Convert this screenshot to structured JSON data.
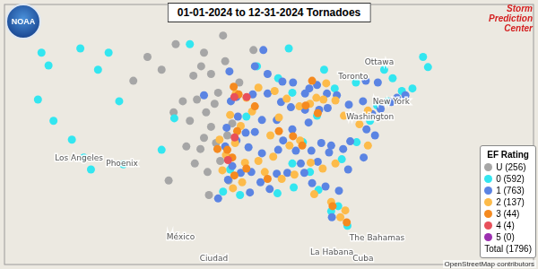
{
  "chart_data": {
    "type": "scatter",
    "title": "01-01-2024 to 12-31-2024 Tornadoes",
    "noaa_logo_text": "NOAA",
    "spc_logo_text": "Storm Prediction Center",
    "attribution": "OpenStreetMap contributors",
    "legend_title": "EF Rating",
    "legend_total": "Total (1796)",
    "legend": "bottom right",
    "grid": false,
    "tick_labels": false,
    "marker": "circle",
    "xlim": [
      -128.8,
      -53.8
    ],
    "ylim": [
      21.6,
      52.2
    ],
    "map_labels": [
      {
        "text": "Ottawa",
        "x": -75.7,
        "y": 45.4
      },
      {
        "text": "Toronto",
        "x": -79.4,
        "y": 43.7
      },
      {
        "text": "New York",
        "x": -74.0,
        "y": 40.7
      },
      {
        "text": "Washington",
        "x": -77.0,
        "y": 38.9
      },
      {
        "text": "Los Angeles",
        "x": -118.2,
        "y": 34.05
      },
      {
        "text": "Phoenix",
        "x": -112.1,
        "y": 33.45
      },
      {
        "text": "México",
        "x": -103.8,
        "y": 24.8
      },
      {
        "text": "Ciudad",
        "x": -99.1,
        "y": 22.3
      },
      {
        "text": "La Habana",
        "x": -82.4,
        "y": 23.1
      },
      {
        "text": "Cuba",
        "x": -78.0,
        "y": 22.3
      },
      {
        "text": "The Bahamas",
        "x": -76.0,
        "y": 24.7
      }
    ],
    "series": [
      {
        "name": "U (256)",
        "color": "#a6a6a6",
        "values": [
          [
            -101,
            35.2
          ],
          [
            -100.5,
            36.5
          ],
          [
            -99.5,
            37.8
          ],
          [
            -100.2,
            39.5
          ],
          [
            -101.5,
            41
          ],
          [
            -99,
            40.5
          ],
          [
            -102.5,
            38.5
          ],
          [
            -103.5,
            40.8
          ],
          [
            -98.2,
            33.8
          ],
          [
            -100,
            32.5
          ],
          [
            -101.8,
            33.5
          ],
          [
            -103,
            35.5
          ],
          [
            -104.8,
            39.5
          ],
          [
            -97.5,
            45.5
          ],
          [
            -99.5,
            44
          ],
          [
            -100.5,
            46.5
          ],
          [
            -106.5,
            44.5
          ],
          [
            -108.5,
            46
          ],
          [
            -104.5,
            47.5
          ],
          [
            -97.8,
            48.5
          ],
          [
            -96.5,
            38.2
          ],
          [
            -98.5,
            41.8
          ],
          [
            -102,
            43.8
          ],
          [
            -95.5,
            43
          ],
          [
            -110.5,
            43.2
          ],
          [
            -105.5,
            31.5
          ],
          [
            -99.8,
            29.8
          ],
          [
            -97.2,
            36.8
          ],
          [
            -98.8,
            35.9
          ],
          [
            -100.9,
            44.9
          ],
          [
            -93.5,
            46.8
          ],
          [
            -97,
            31.5
          ]
        ]
      },
      {
        "name": "0 (592)",
        "color": "#33e6f0",
        "values": [
          [
            -123.5,
            46.5
          ],
          [
            -122.5,
            45
          ],
          [
            -121.8,
            38.5
          ],
          [
            -119.2,
            36.3
          ],
          [
            -117.5,
            34.2
          ],
          [
            -114,
            46.5
          ],
          [
            -111.9,
            33.4
          ],
          [
            -112.5,
            40.8
          ],
          [
            -106.5,
            35.1
          ],
          [
            -104.7,
            38.8
          ],
          [
            -115.5,
            44.5
          ],
          [
            -118,
            47
          ],
          [
            -124,
            41
          ],
          [
            -116.5,
            32.8
          ],
          [
            -80.2,
            26.2
          ],
          [
            -81.5,
            28.5
          ],
          [
            -82.5,
            27.9
          ],
          [
            -84.3,
            30.4
          ],
          [
            -78.9,
            36
          ],
          [
            -77,
            38.5
          ],
          [
            -76,
            40.3
          ],
          [
            -74.5,
            40.8
          ],
          [
            -72.5,
            42
          ],
          [
            -71,
            42.3
          ],
          [
            -73.8,
            43.5
          ],
          [
            -75,
            44.5
          ],
          [
            -79,
            43
          ],
          [
            -82,
            42.3
          ],
          [
            -84.5,
            39.1
          ],
          [
            -86.5,
            36
          ],
          [
            -88,
            41.8
          ],
          [
            -90,
            43.5
          ],
          [
            -93,
            44.9
          ],
          [
            -95.4,
            29.8
          ],
          [
            -97.8,
            30.2
          ],
          [
            -90.1,
            30
          ],
          [
            -88,
            33.5
          ],
          [
            -81,
            34
          ],
          [
            -83.5,
            44.5
          ],
          [
            -68.8,
            44.8
          ],
          [
            -88.5,
            47
          ],
          [
            -102.5,
            47.5
          ],
          [
            -96.8,
            32.8
          ],
          [
            -94.5,
            39
          ],
          [
            -87.8,
            30.7
          ],
          [
            -85.5,
            32.5
          ],
          [
            -69.5,
            46
          ]
        ]
      },
      {
        "name": "1 (763)",
        "color": "#5b84e3",
        "values": [
          [
            -95.9,
            41.3
          ],
          [
            -93.6,
            41.6
          ],
          [
            -91.5,
            41.7
          ],
          [
            -89.6,
            40.7
          ],
          [
            -88.2,
            40.1
          ],
          [
            -86.2,
            39.8
          ],
          [
            -85.7,
            38.3
          ],
          [
            -84.2,
            39.8
          ],
          [
            -83,
            40
          ],
          [
            -81.7,
            41.5
          ],
          [
            -80,
            40.4
          ],
          [
            -78,
            40.8
          ],
          [
            -76.7,
            39.3
          ],
          [
            -75.5,
            39.9
          ],
          [
            -77.5,
            37.5
          ],
          [
            -80.8,
            35.2
          ],
          [
            -79.8,
            36.1
          ],
          [
            -82.5,
            35.6
          ],
          [
            -84.4,
            33.7
          ],
          [
            -86.8,
            33.5
          ],
          [
            -86.3,
            32.4
          ],
          [
            -88.7,
            32.4
          ],
          [
            -90.2,
            32.3
          ],
          [
            -91.2,
            30.5
          ],
          [
            -92.5,
            31.3
          ],
          [
            -93.8,
            32.5
          ],
          [
            -94.2,
            35.4
          ],
          [
            -92.3,
            34.7
          ],
          [
            -90,
            35.1
          ],
          [
            -87.5,
            35
          ],
          [
            -85.3,
            35
          ],
          [
            -83.9,
            35.9
          ],
          [
            -95.3,
            32.4
          ],
          [
            -96.5,
            33.2
          ],
          [
            -97.5,
            35.5
          ],
          [
            -95.9,
            36.2
          ],
          [
            -94.6,
            37.1
          ],
          [
            -93.3,
            37.2
          ],
          [
            -90.2,
            38.6
          ],
          [
            -92.3,
            38.6
          ],
          [
            -95.7,
            39
          ],
          [
            -97.3,
            37.7
          ],
          [
            -96.7,
            40.8
          ],
          [
            -93.3,
            44.9
          ],
          [
            -91.5,
            44
          ],
          [
            -89.4,
            43.1
          ],
          [
            -87.9,
            43
          ],
          [
            -85.6,
            42.3
          ],
          [
            -84.5,
            42.7
          ],
          [
            -83.1,
            41.7
          ],
          [
            -86.2,
            41.7
          ],
          [
            -82.4,
            27.2
          ],
          [
            -81.4,
            30.3
          ],
          [
            -83.3,
            30.8
          ],
          [
            -85.2,
            31.2
          ],
          [
            -80.1,
            32.8
          ],
          [
            -77.9,
            34.2
          ],
          [
            -76.3,
            36.8
          ],
          [
            -74,
            40.7
          ],
          [
            -73.2,
            41.2
          ],
          [
            -72,
            41.5
          ],
          [
            -75.9,
            43
          ],
          [
            -77.6,
            43.2
          ],
          [
            -88,
            37.5
          ],
          [
            -89.3,
            36.2
          ],
          [
            -98.5,
            29.4
          ],
          [
            -97.1,
            31.6
          ],
          [
            -94,
            30.1
          ],
          [
            -100.5,
            41.5
          ],
          [
            -96.9,
            44.3
          ],
          [
            -92.1,
            46.8
          ],
          [
            -82.8,
            34.8
          ]
        ]
      },
      {
        "name": "2 (137)",
        "color": "#fdbb4a",
        "values": [
          [
            -96,
            41.7
          ],
          [
            -94.5,
            41.2
          ],
          [
            -92.8,
            42.4
          ],
          [
            -90.5,
            42
          ],
          [
            -88.8,
            41.1
          ],
          [
            -87,
            40.2
          ],
          [
            -85.5,
            40.5
          ],
          [
            -84.6,
            41.2
          ],
          [
            -83.6,
            41
          ],
          [
            -86.9,
            36.2
          ],
          [
            -88.4,
            35.6
          ],
          [
            -90.7,
            34.3
          ],
          [
            -92.8,
            33.8
          ],
          [
            -94.7,
            33.6
          ],
          [
            -96.1,
            35.9
          ],
          [
            -97.4,
            34.5
          ],
          [
            -98.3,
            36.3
          ],
          [
            -95.3,
            37.9
          ],
          [
            -96.8,
            39.2
          ],
          [
            -97.9,
            32.7
          ],
          [
            -96.4,
            30.6
          ],
          [
            -95.1,
            31.3
          ],
          [
            -91.9,
            32.5
          ],
          [
            -89.5,
            31.7
          ],
          [
            -87.7,
            32.2
          ],
          [
            -85.4,
            33.6
          ],
          [
            -83.7,
            32.9
          ],
          [
            -81.9,
            33.5
          ],
          [
            -82.5,
            29
          ],
          [
            -81.2,
            27.2
          ],
          [
            -80.5,
            28
          ],
          [
            -84.9,
            29.9
          ],
          [
            -77.3,
            35.6
          ],
          [
            -78.5,
            38.1
          ],
          [
            -77.3,
            39.7
          ],
          [
            -80.7,
            39.1
          ],
          [
            -81.9,
            40.9
          ],
          [
            -83.2,
            42.9
          ],
          [
            -89.9,
            38.9
          ],
          [
            -93.7,
            39.6
          ],
          [
            -91.1,
            36.8
          ]
        ]
      },
      {
        "name": "3 (44)",
        "color": "#f58a1f",
        "values": [
          [
            -95.6,
            41.6
          ],
          [
            -96.3,
            42.5
          ],
          [
            -93.3,
            40.2
          ],
          [
            -97.2,
            35.1
          ],
          [
            -96.5,
            34.2
          ],
          [
            -98.6,
            35.2
          ],
          [
            -95.8,
            37.3
          ],
          [
            -96.2,
            32.1
          ],
          [
            -94.5,
            32.9
          ],
          [
            -86.6,
            35.6
          ],
          [
            -87.9,
            36.7
          ],
          [
            -89.9,
            37.3
          ],
          [
            -84.4,
            39.4
          ],
          [
            -86.1,
            40.3
          ],
          [
            -82.3,
            28.5
          ],
          [
            -80.3,
            26.6
          ],
          [
            -91.5,
            31.7
          ],
          [
            -85.2,
            43.2
          ]
        ]
      },
      {
        "name": "4 (4)",
        "color": "#e8505b",
        "values": [
          [
            -94.46,
            41.3
          ],
          [
            -96.16,
            36.56
          ],
          [
            -96.2,
            41.3
          ],
          [
            -97.1,
            33.9
          ]
        ]
      },
      {
        "name": "5 (0)",
        "color": "#9b30b0",
        "values": []
      }
    ]
  }
}
